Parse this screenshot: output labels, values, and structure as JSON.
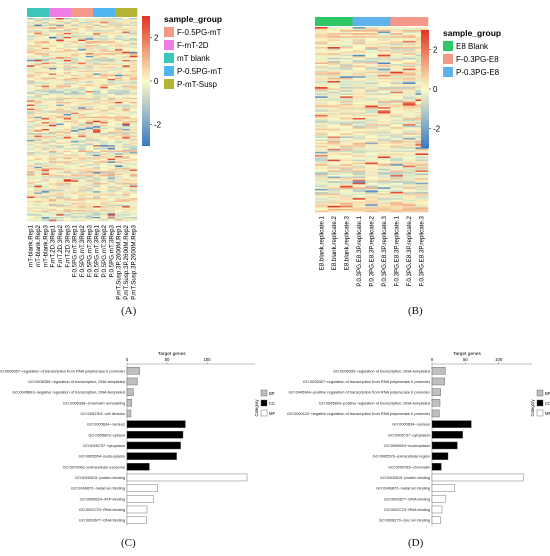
{
  "figure": {
    "panel_letters": [
      "(A)",
      "(B)",
      "(C)",
      "(D)"
    ]
  },
  "colors": {
    "heat_low": "#3a78c4",
    "heat_mid": "#fbfbc8",
    "heat_high": "#e03323",
    "bar_grey": "#bfbfbf",
    "bar_black": "#000000",
    "bar_white": "#ffffff"
  },
  "chart_data": [
    {
      "type": "heatmap",
      "panel": "A",
      "legend_title": "sample_group",
      "scale_ticks": [
        "2",
        "0",
        "-2"
      ],
      "scale_range": [
        -3,
        3
      ],
      "groups": [
        {
          "name": "F-0.5PG-mT",
          "color": "#f4998a"
        },
        {
          "name": "F-mT-2D",
          "color": "#f07ce8"
        },
        {
          "name": "mT blank",
          "color": "#3cc6b9"
        },
        {
          "name": "P-0.5PG-mT",
          "color": "#4fb6f0"
        },
        {
          "name": "P-mT-Susp",
          "color": "#b3b634"
        }
      ],
      "columns": [
        {
          "label": "mT-blank.Rep1",
          "group": 2
        },
        {
          "label": "mT-blank.Rep2",
          "group": 2
        },
        {
          "label": "mT-blank.Rep3",
          "group": 2
        },
        {
          "label": "F.mT.2D.3Rep1",
          "group": 1
        },
        {
          "label": "F.mT.2D.3Rep2",
          "group": 1
        },
        {
          "label": "F.mT.2D.3Rep3",
          "group": 1
        },
        {
          "label": "F.0.5PG.mT.3Rep1",
          "group": 0
        },
        {
          "label": "F.0.5PG.mT.3Rep2",
          "group": 0
        },
        {
          "label": "F.0.5PG.mT.3Rep3",
          "group": 0
        },
        {
          "label": "P.0.5PG.mT.3Rep1",
          "group": 3
        },
        {
          "label": "P.0.5PG.mT.3Rep2",
          "group": 3
        },
        {
          "label": "P.0.5PG.mT.3Rep3",
          "group": 3
        },
        {
          "label": "P.mT.Susp.3P.2600M.Rep1",
          "group": 4
        },
        {
          "label": "P.mT.Susp.3P.2600M.Rep2",
          "group": 4
        },
        {
          "label": "P.mT.Susp.3P.2600M.Rep3",
          "group": 4
        }
      ]
    },
    {
      "type": "heatmap",
      "panel": "B",
      "legend_title": "sample_group",
      "scale_ticks": [
        "2",
        "0",
        "-2"
      ],
      "scale_range": [
        -3,
        3
      ],
      "groups": [
        {
          "name": "E8 Blank",
          "color": "#2ec765"
        },
        {
          "name": "F-0.3PG-E8",
          "color": "#f4998a"
        },
        {
          "name": "P-0.3PG-E8",
          "color": "#5fb2ec"
        }
      ],
      "columns": [
        {
          "label": "E8.blank.replicate.1",
          "group": 0
        },
        {
          "label": "E8.blank.replicate.2",
          "group": 0
        },
        {
          "label": "E8.blank.replicate.3",
          "group": 0
        },
        {
          "label": "P.0.3PG.E8.3P.replicate.1",
          "group": 2
        },
        {
          "label": "P.0.3PG.E8.3P.replicate.2",
          "group": 2
        },
        {
          "label": "P.0.3PG.E8.3P.replicate.3",
          "group": 2
        },
        {
          "label": "F.0.3PG.E8.3P.replicate.1",
          "group": 1
        },
        {
          "label": "F.0.3PG.E8.3P.replicate.2",
          "group": 1
        },
        {
          "label": "F.0.3PG.E8.3P.replicate.3",
          "group": 1
        }
      ]
    },
    {
      "type": "bar",
      "panel": "C",
      "orientation": "horizontal",
      "xlabel": "Target genes",
      "xticks": [
        0,
        50,
        100
      ],
      "xlim": [
        0,
        160
      ],
      "legend_title": "Category",
      "legend_items": [
        "BP",
        "CC",
        "MF"
      ],
      "categories": [
        {
          "label": "GO:0006357~regulation of transcription from RNA polymerase II promoter",
          "value": 16,
          "cat": 0
        },
        {
          "label": "GO:0006355~regulation of transcription, DNA-templated",
          "value": 13,
          "cat": 0
        },
        {
          "label": "GO:0045893~negative regulation of transcription, DNA-templated",
          "value": 8,
          "cat": 0
        },
        {
          "label": "GO:0006338~chromatin remodeling",
          "value": 6,
          "cat": 0
        },
        {
          "label": "GO:0051301~cell division",
          "value": 5,
          "cat": 0
        },
        {
          "label": "GO:0005634~nucleus",
          "value": 73,
          "cat": 1
        },
        {
          "label": "GO:0005829~cytosol",
          "value": 70,
          "cat": 1
        },
        {
          "label": "GO:0005737~cytoplasm",
          "value": 67,
          "cat": 1
        },
        {
          "label": "GO:0005654~nucleoplasm",
          "value": 62,
          "cat": 1
        },
        {
          "label": "GO:0070062~extracellular exosome",
          "value": 28,
          "cat": 1
        },
        {
          "label": "GO:0005515~protein binding",
          "value": 150,
          "cat": 2
        },
        {
          "label": "GO:0046872~metal ion binding",
          "value": 38,
          "cat": 2
        },
        {
          "label": "GO:0005524~ATP binding",
          "value": 33,
          "cat": 2
        },
        {
          "label": "GO:0003723~RNA binding",
          "value": 25,
          "cat": 2
        },
        {
          "label": "GO:0003677~DNA binding",
          "value": 24,
          "cat": 2
        }
      ]
    },
    {
      "type": "bar",
      "panel": "D",
      "orientation": "horizontal",
      "xlabel": "Target genes",
      "xticks": [
        0,
        50,
        100
      ],
      "xlim": [
        0,
        150
      ],
      "legend_title": "Category",
      "legend_items": [
        "BP",
        "CC",
        "MF"
      ],
      "categories": [
        {
          "label": "GO:0006355~regulation of transcription, DNA-templated",
          "value": 20,
          "cat": 0
        },
        {
          "label": "GO:0006357~regulation of transcription from RNA polymerase II promoter",
          "value": 19,
          "cat": 0
        },
        {
          "label": "GO:0045944~positive regulation of transcription from RNA polymerase II promoter",
          "value": 13,
          "cat": 0
        },
        {
          "label": "GO:0045893~positive regulation of transcription, DNA-templated",
          "value": 12,
          "cat": 0
        },
        {
          "label": "GO:0000122~negative regulation of transcription from RNA polymerase II promoter",
          "value": 11,
          "cat": 0
        },
        {
          "label": "GO:0005634~nucleus",
          "value": 59,
          "cat": 1
        },
        {
          "label": "GO:0005737~cytoplasm",
          "value": 46,
          "cat": 1
        },
        {
          "label": "GO:0005654~nucleoplasm",
          "value": 38,
          "cat": 1
        },
        {
          "label": "GO:0005576~extracellular region",
          "value": 24,
          "cat": 1
        },
        {
          "label": "GO:0000785~chromatin",
          "value": 14,
          "cat": 1
        },
        {
          "label": "GO:0005515~protein binding",
          "value": 137,
          "cat": 2
        },
        {
          "label": "GO:0046872~metal ion binding",
          "value": 34,
          "cat": 2
        },
        {
          "label": "GO:0003677~DNA binding",
          "value": 20,
          "cat": 2
        },
        {
          "label": "GO:0003723~RNA binding",
          "value": 15,
          "cat": 2
        },
        {
          "label": "GO:0008270~zinc ion binding",
          "value": 13,
          "cat": 2
        }
      ]
    }
  ]
}
